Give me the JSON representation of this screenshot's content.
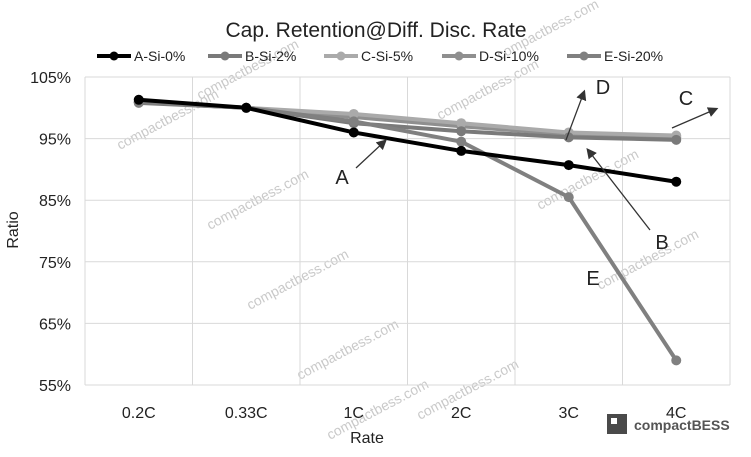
{
  "chart_data": {
    "type": "line",
    "title": "Cap. Retention@Diff. Disc. Rate",
    "xlabel": "Rate",
    "ylabel": "Ratio",
    "categories": [
      "0.2C",
      "0.33C",
      "1C",
      "2C",
      "3C",
      "4C"
    ],
    "ylim": [
      0.55,
      1.05
    ],
    "yticks": [
      "55%",
      "65%",
      "75%",
      "85%",
      "95%",
      "105%"
    ],
    "grid": "horizontal+vertical",
    "legend_position": "top",
    "series": [
      {
        "name": "A-Si-0%",
        "color": "#000000",
        "values": [
          1.013,
          1.0,
          0.96,
          0.93,
          0.907,
          0.88
        ]
      },
      {
        "name": "B-Si-2%",
        "color": "#7a7a7a",
        "values": [
          1.008,
          1.0,
          0.975,
          0.962,
          0.952,
          0.948
        ]
      },
      {
        "name": "C-Si-5%",
        "color": "#aaaaaa",
        "values": [
          1.009,
          1.0,
          0.99,
          0.975,
          0.96,
          0.955
        ]
      },
      {
        "name": "D-Si-10%",
        "color": "#8f8f8f",
        "values": [
          1.009,
          1.0,
          0.985,
          0.97,
          0.957,
          0.952
        ]
      },
      {
        "name": "E-Si-20%",
        "color": "#808080",
        "values": [
          1.009,
          1.0,
          0.978,
          0.945,
          0.855,
          0.59
        ]
      }
    ],
    "annotations": [
      {
        "label": "A",
        "series": "A-Si-0%"
      },
      {
        "label": "B",
        "series": "B-Si-2%"
      },
      {
        "label": "C",
        "series": "C-Si-5%"
      },
      {
        "label": "D",
        "series": "D-Si-10%"
      },
      {
        "label": "E",
        "series": "E-Si-20%"
      }
    ]
  },
  "watermark": {
    "text": "compactbess.com",
    "logo_text": "compactBESS"
  }
}
